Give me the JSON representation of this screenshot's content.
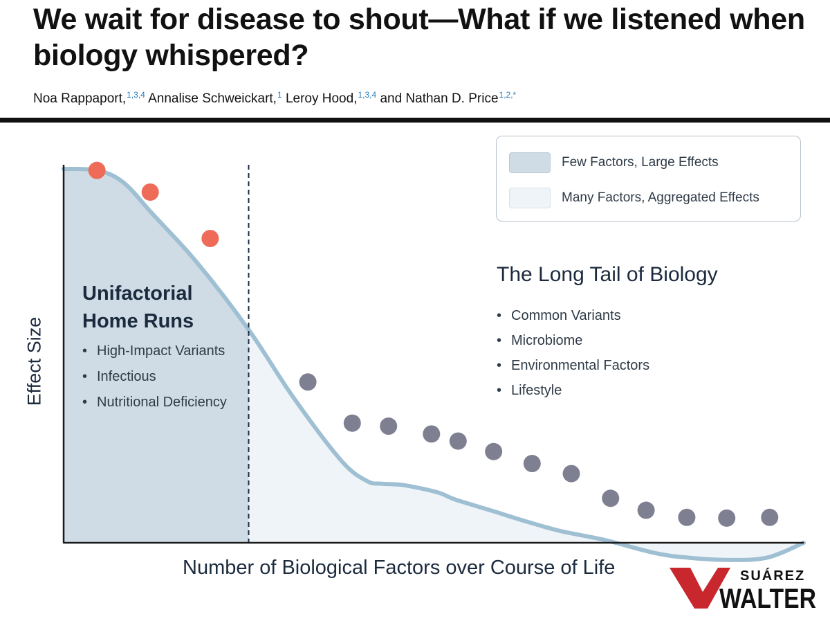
{
  "paper": {
    "title": "We wait for disease to shout—What if we listened when biology whispered?",
    "authors": [
      {
        "name": "Noa Rappaport,",
        "aff": "1,3,4"
      },
      {
        "name": "Annalise Schweickart,",
        "aff": "1"
      },
      {
        "name": "Leroy Hood,",
        "aff": "1,3,4"
      },
      {
        "name": "and Nathan D. Price",
        "aff": "1,2,*"
      }
    ]
  },
  "figure": {
    "legend": [
      {
        "label": "Few Factors, Large Effects",
        "color": "#cfdce6"
      },
      {
        "label": "Many Factors, Aggregated Effects",
        "color": "#eff4f8"
      }
    ],
    "left_region": {
      "title": "Unifactorial Home Runs",
      "items": [
        "High-Impact Variants",
        "Infectious",
        "Nutritional Deficiency"
      ]
    },
    "right_region": {
      "title": "The Long Tail of Biology",
      "items": [
        "Common Variants",
        "Microbiome",
        "Environmental Factors",
        "Lifestyle"
      ]
    },
    "ylabel": "Effect Size",
    "xlabel": "Number of Biological Factors over Course of Life",
    "colors": {
      "curve": "#9fbfd3",
      "high_impact_dot": "#ee6b58",
      "long_tail_dot": "#7e8092",
      "left_fill": "#cfdce6",
      "right_fill": "#eff4f8",
      "axis": "#1a1a1a"
    }
  },
  "chart_data": {
    "type": "line",
    "title": "",
    "xlabel": "Number of Biological Factors over Course of Life",
    "ylabel": "Effect Size",
    "xlim": [
      0,
      100
    ],
    "ylim": [
      0,
      100
    ],
    "threshold_x": 25,
    "curve": {
      "x": [
        0,
        4.5,
        8,
        12,
        18,
        25,
        31,
        37.5,
        41,
        43,
        46,
        50.5,
        53,
        58,
        62,
        67,
        73,
        80,
        84.5,
        89.5,
        95,
        100
      ],
      "y": [
        100,
        99.6,
        96.5,
        88,
        75,
        57,
        39,
        22,
        16.5,
        15.8,
        15.4,
        13.5,
        11.5,
        8.5,
        6,
        3.2,
        0.8,
        -2.8,
        -4,
        -4.6,
        -4,
        0
      ]
    },
    "series": [
      {
        "name": "High-Impact factors",
        "x": [
          4.5,
          11.7,
          19.8
        ],
        "y": [
          99.6,
          93.8,
          81.4
        ]
      },
      {
        "name": "Long-tail factors",
        "x": [
          33,
          39,
          43.9,
          49.7,
          53.3,
          58.1,
          63.3,
          68.6,
          73.9,
          78.7,
          84.2,
          89.6,
          95.4
        ],
        "y": [
          43,
          32,
          31.2,
          29.1,
          27.2,
          24.4,
          21.2,
          18.5,
          11.9,
          8.7,
          6.8,
          6.6,
          6.8
        ]
      }
    ]
  },
  "watermark": {
    "line1": "SUÁREZ",
    "line2": "WALTER"
  }
}
